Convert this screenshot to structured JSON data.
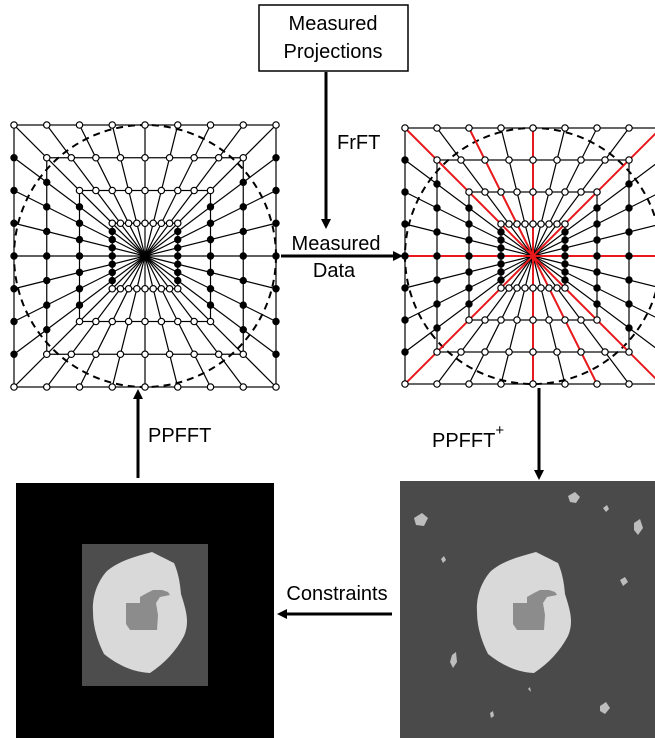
{
  "boxes": {
    "measured_projections": {
      "line1": "Measured",
      "line2": "Projections"
    }
  },
  "labels": {
    "frft": "FrFT",
    "measured_data_line1": "Measured",
    "measured_data_line2": "Data",
    "ppfft": "PPFFT",
    "ppfft_plus_base": "PPFFT",
    "ppfft_plus_sup": "+",
    "constraints": "Constraints"
  },
  "colors": {
    "line": "#000000",
    "highlight": "#e8191c",
    "object_bg_left": "#000000",
    "support_region": "#4d4d4d",
    "blob": "#d9d9d9",
    "inner_blob": "#8c8c8c",
    "object_bg_right": "#4a4a4a",
    "noise_speckle": "#bdbdbd"
  }
}
